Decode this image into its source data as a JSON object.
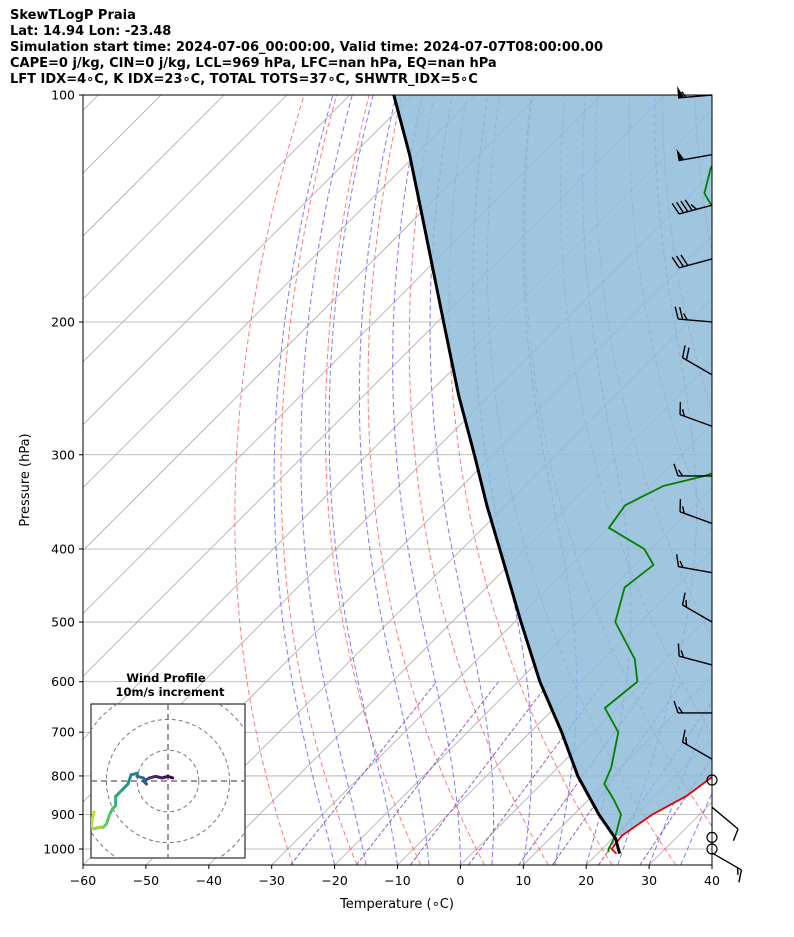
{
  "header": {
    "lines": [
      "SkewTLogP Praia",
      "Lat: 14.94   Lon: -23.48",
      "Simulation start time: 2024-07-06_00:00:00, Valid time: 2024-07-07T08:00:00.00",
      "CAPE=0 j/kg, CIN=0 j/kg, LCL=969 hPa, LFC=nan hPa, EQ=nan hPa",
      "LFT IDX=4∘C, K IDX=23∘C, TOTAL TOTS=37∘C, SHWTR_IDX=5∘C"
    ]
  },
  "colors": {
    "temperature": "#e00000",
    "dewpoint": "#008000",
    "parcel": "#000000",
    "cape_fill": "#8fbbd9",
    "dry_adiabat": "#ff6a6a",
    "moist_adiabat": "#6a6aff",
    "mixing_ratio": "#8a3fb5",
    "isotherm": "#aaaaaa",
    "isobar": "#aaaaaa"
  },
  "chart_data": {
    "type": "line",
    "subtype": "skew-T log-P",
    "xlabel": "Temperature (∘C)",
    "ylabel": "Pressure (hPa)",
    "xlim": [
      -60,
      40
    ],
    "ylim": [
      1050,
      100
    ],
    "y_scale": "log",
    "x_ticks": [
      -60,
      -50,
      -40,
      -30,
      -20,
      -10,
      0,
      10,
      20,
      30,
      40
    ],
    "y_ticks": [
      1000,
      900,
      800,
      700,
      600,
      500,
      400,
      300,
      200,
      100
    ],
    "grid": true,
    "series": [
      {
        "key": "temperature",
        "points": [
          [
            1014,
            23
          ],
          [
            1000,
            21.5
          ],
          [
            960,
            21.0
          ],
          [
            900,
            22.5
          ],
          [
            850,
            25
          ],
          [
            790,
            26.3
          ],
          [
            750,
            25.5
          ],
          [
            700,
            24
          ],
          [
            600,
            20.5
          ],
          [
            500,
            14.5
          ],
          [
            420,
            6.5
          ],
          [
            380,
            2
          ],
          [
            350,
            -3
          ],
          [
            320,
            -9
          ],
          [
            310,
            -12
          ],
          [
            290,
            -16
          ],
          [
            270,
            -20
          ],
          [
            250,
            -26
          ],
          [
            220,
            -34
          ],
          [
            200,
            -38
          ],
          [
            180,
            -45
          ],
          [
            160,
            -54
          ],
          [
            150,
            -57
          ],
          [
            140,
            -59
          ],
          [
            130,
            -63.5
          ],
          [
            120,
            -66
          ],
          [
            110,
            -69
          ],
          [
            106,
            -72
          ],
          [
            100,
            -73
          ]
        ]
      },
      {
        "key": "dewpoint",
        "points": [
          [
            1010,
            21.5
          ],
          [
            1000,
            21
          ],
          [
            960,
            20
          ],
          [
            900,
            17.5
          ],
          [
            860,
            14
          ],
          [
            820,
            10
          ],
          [
            780,
            8.5
          ],
          [
            700,
            4
          ],
          [
            650,
            -2
          ],
          [
            600,
            -1
          ],
          [
            560,
            -5
          ],
          [
            500,
            -14
          ],
          [
            450,
            -18
          ],
          [
            420,
            -17
          ],
          [
            400,
            -21
          ],
          [
            375,
            -30
          ],
          [
            350,
            -31
          ],
          [
            330,
            -28
          ],
          [
            320,
            -23
          ],
          [
            300,
            -17
          ],
          [
            280,
            -17.5
          ],
          [
            260,
            -20
          ],
          [
            240,
            -24.5
          ],
          [
            220,
            -29.5
          ],
          [
            200,
            -36
          ],
          [
            180,
            -42
          ],
          [
            170,
            -48
          ],
          [
            160,
            -53
          ],
          [
            150,
            -57
          ],
          [
            140,
            -65
          ],
          [
            135,
            -68
          ],
          [
            125,
            -71
          ],
          [
            115,
            -72.5
          ],
          [
            100,
            -78
          ]
        ]
      },
      {
        "key": "parcel",
        "points": [
          [
            1014,
            23.5
          ],
          [
            969,
            20.5
          ],
          [
            900,
            14
          ],
          [
            800,
            4.5
          ],
          [
            700,
            -5
          ],
          [
            600,
            -16.5
          ],
          [
            500,
            -29
          ],
          [
            400,
            -44
          ],
          [
            350,
            -53
          ],
          [
            300,
            -63
          ],
          [
            250,
            -75
          ],
          [
            200,
            -89
          ],
          [
            150,
            -107
          ],
          [
            120,
            -121
          ],
          [
            100,
            -133
          ]
        ]
      }
    ],
    "wind_barbs": [
      {
        "p": 100,
        "speed": 55,
        "dir": 265
      },
      {
        "p": 120,
        "speed": 50,
        "dir": 260
      },
      {
        "p": 140,
        "speed": 45,
        "dir": 255
      },
      {
        "p": 165,
        "speed": 30,
        "dir": 255
      },
      {
        "p": 200,
        "speed": 25,
        "dir": 275
      },
      {
        "p": 235,
        "speed": 20,
        "dir": 300
      },
      {
        "p": 275,
        "speed": 15,
        "dir": 290
      },
      {
        "p": 320,
        "speed": 15,
        "dir": 270
      },
      {
        "p": 370,
        "speed": 15,
        "dir": 290
      },
      {
        "p": 430,
        "speed": 15,
        "dir": 280
      },
      {
        "p": 500,
        "speed": 15,
        "dir": 300
      },
      {
        "p": 570,
        "speed": 15,
        "dir": 285
      },
      {
        "p": 660,
        "speed": 15,
        "dir": 270
      },
      {
        "p": 760,
        "speed": 15,
        "dir": 300
      },
      {
        "p": 810,
        "speed": 0,
        "dir": 0
      },
      {
        "p": 880,
        "speed": 10,
        "dir": 130
      },
      {
        "p": 965,
        "speed": 0,
        "dir": 0
      },
      {
        "p": 1000,
        "speed": 0,
        "dir": 0
      },
      {
        "p": 1012,
        "speed": 15,
        "dir": 120
      }
    ],
    "hodograph": {
      "title": "Wind Profile",
      "subtitle": "10m/s increment",
      "ring_step": 10,
      "range": 25,
      "points": [
        [
          1.5,
          1
        ],
        [
          0,
          1.5
        ],
        [
          -2,
          1
        ],
        [
          -4,
          1.5
        ],
        [
          -6,
          1
        ],
        [
          -7,
          0.5
        ],
        [
          -8,
          0
        ],
        [
          -7,
          -1
        ],
        [
          -8,
          1
        ],
        [
          -10,
          1.5
        ],
        [
          -10,
          2.5
        ],
        [
          -12,
          2
        ],
        [
          -13,
          -1
        ],
        [
          -15,
          -3
        ],
        [
          -17,
          -5
        ],
        [
          -17,
          -8
        ],
        [
          -18,
          -9
        ],
        [
          -19,
          -11
        ],
        [
          -20,
          -14
        ],
        [
          -21,
          -15
        ],
        [
          -22,
          -15
        ],
        [
          -24,
          -15.5
        ],
        [
          -25,
          -15
        ],
        [
          -24.5,
          -12
        ],
        [
          -24,
          -10
        ]
      ]
    }
  }
}
